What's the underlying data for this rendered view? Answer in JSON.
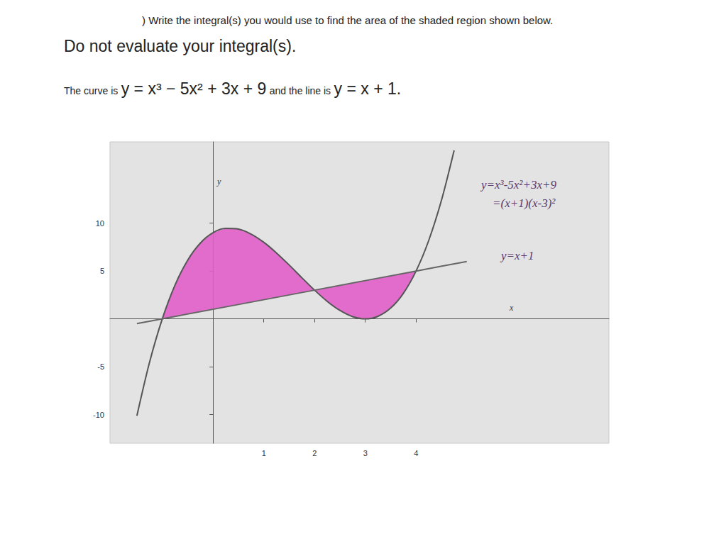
{
  "header": {
    "instruction": ") Write the integral(s) you would use to find the area of the shaded region shown below.",
    "emphasis": "Do not evaluate your integral(s).",
    "curve_prefix": "The curve is",
    "curve_equation": "y = x³ − 5x² + 3x + 9",
    "line_prefix": "and the line is",
    "line_equation": "y = x + 1."
  },
  "chart_data": {
    "type": "line",
    "x_label": "x",
    "y_label": "y",
    "annotations": [
      "=(x+1)(x-3)²"
    ],
    "xlim": [
      -2.03,
      7.8
    ],
    "ylim": [
      -13,
      18.5
    ],
    "xticks": [
      1,
      2,
      3,
      4
    ],
    "yticks": [
      -10,
      -5,
      5,
      10
    ],
    "grid": false,
    "series": [
      {
        "name": "y=x³-5x²+3x+9",
        "color": "#555555",
        "x": [
          -1.5,
          -1.25,
          -1,
          -0.75,
          -0.5,
          -0.25,
          0,
          0.25,
          0.5,
          0.75,
          1,
          1.25,
          1.5,
          1.75,
          2,
          2.25,
          2.5,
          2.75,
          3,
          3.25,
          3.5,
          3.75,
          4,
          4.25,
          4.5,
          4.75
        ],
        "values": [
          -10.13,
          -4.52,
          0,
          3.52,
          6.13,
          7.92,
          9,
          9.45,
          9.38,
          8.86,
          8,
          6.89,
          5.63,
          4.3,
          3,
          1.83,
          0.88,
          0.23,
          0,
          0.27,
          1.13,
          2.67,
          5,
          8.2,
          12.38,
          17.61
        ]
      },
      {
        "name": "y=x+1",
        "color": "#666666",
        "x": [
          -1.5,
          -1,
          2,
          4,
          5
        ],
        "values": [
          -0.5,
          0,
          3,
          5,
          6
        ]
      }
    ],
    "shaded": {
      "x": [
        -1,
        4
      ],
      "color": "#e05ec8"
    }
  }
}
